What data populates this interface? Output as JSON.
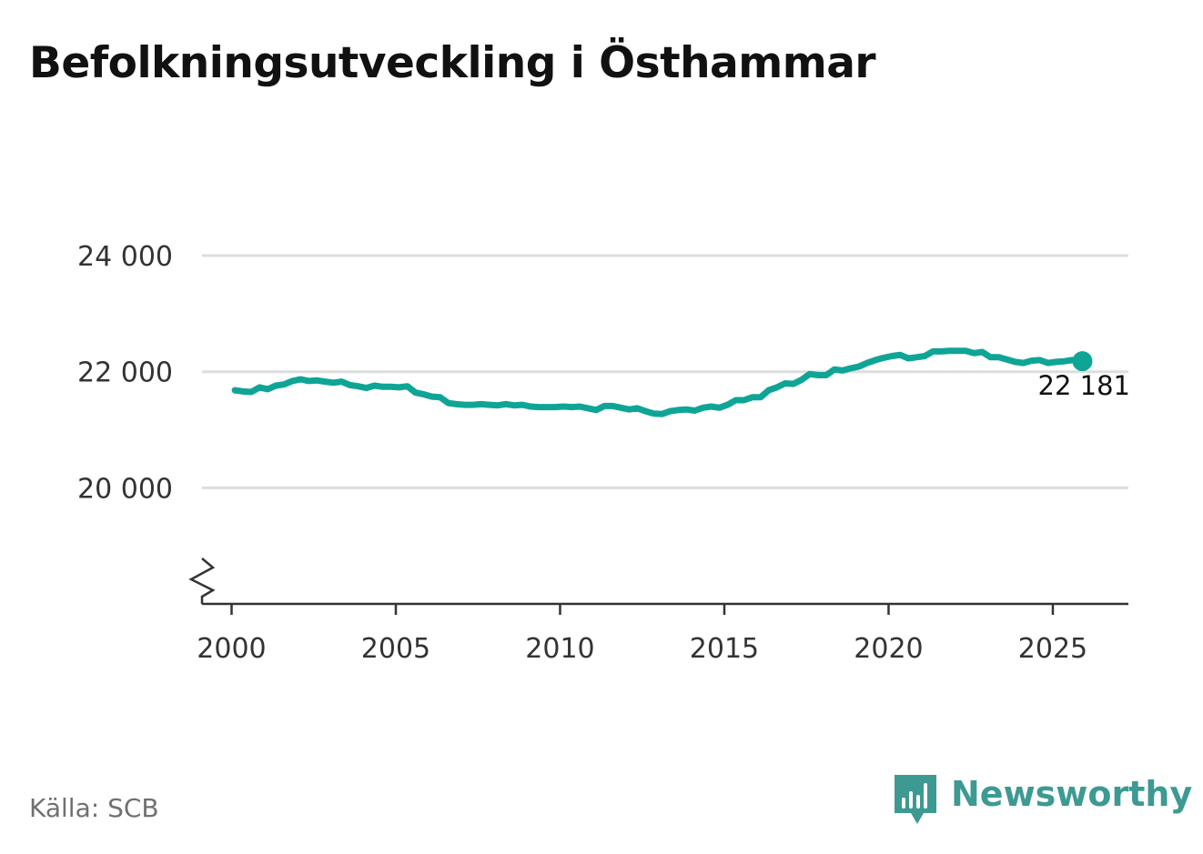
{
  "chart_data": {
    "type": "line",
    "title": "Befolkningsutveckling i Östhammar",
    "xlabel": "",
    "ylabel": "",
    "xlim": [
      1999.1,
      2027.3
    ],
    "ylim": [
      18000,
      24800
    ],
    "x_ticks": [
      2000,
      2005,
      2010,
      2015,
      2020,
      2025
    ],
    "x_tick_labels": [
      "2000",
      "2005",
      "2010",
      "2015",
      "2020",
      "2025"
    ],
    "y_ticks": [
      20000,
      22000,
      24000
    ],
    "y_tick_labels": [
      "20 000",
      "22 000",
      "24 000"
    ],
    "grid": true,
    "axis_break": true,
    "series": [
      {
        "name": "Befolkning",
        "color": "#0fa596",
        "x": [
          2000.1,
          2000.35,
          2000.6,
          2000.85,
          2001.1,
          2001.35,
          2001.6,
          2001.85,
          2002.1,
          2002.35,
          2002.6,
          2002.85,
          2003.1,
          2003.35,
          2003.6,
          2003.85,
          2004.1,
          2004.35,
          2004.6,
          2004.85,
          2005.1,
          2005.35,
          2005.6,
          2005.85,
          2006.1,
          2006.35,
          2006.6,
          2006.85,
          2007.1,
          2007.35,
          2007.6,
          2007.85,
          2008.1,
          2008.35,
          2008.6,
          2008.85,
          2009.1,
          2009.35,
          2009.6,
          2009.85,
          2010.1,
          2010.35,
          2010.6,
          2010.85,
          2011.1,
          2011.35,
          2011.6,
          2011.85,
          2012.1,
          2012.35,
          2012.6,
          2012.85,
          2013.1,
          2013.35,
          2013.6,
          2013.85,
          2014.1,
          2014.35,
          2014.6,
          2014.85,
          2015.1,
          2015.35,
          2015.6,
          2015.85,
          2016.1,
          2016.35,
          2016.6,
          2016.85,
          2017.1,
          2017.35,
          2017.6,
          2017.85,
          2018.1,
          2018.35,
          2018.6,
          2018.85,
          2019.1,
          2019.35,
          2019.6,
          2019.85,
          2020.1,
          2020.35,
          2020.6,
          2020.85,
          2021.1,
          2021.35,
          2021.6,
          2021.85,
          2022.1,
          2022.35,
          2022.6,
          2022.85,
          2023.1,
          2023.35,
          2023.6,
          2023.85,
          2024.1,
          2024.35,
          2024.6,
          2024.85,
          2025.1,
          2025.35,
          2025.6,
          2025.9
        ],
        "values": [
          21680,
          21660,
          21650,
          21730,
          21700,
          21760,
          21780,
          21840,
          21870,
          21840,
          21850,
          21830,
          21810,
          21830,
          21770,
          21750,
          21720,
          21760,
          21740,
          21740,
          21730,
          21750,
          21640,
          21610,
          21570,
          21560,
          21460,
          21440,
          21430,
          21430,
          21440,
          21430,
          21420,
          21440,
          21420,
          21430,
          21400,
          21390,
          21390,
          21390,
          21400,
          21390,
          21400,
          21370,
          21340,
          21410,
          21410,
          21380,
          21350,
          21370,
          21320,
          21280,
          21270,
          21320,
          21340,
          21350,
          21330,
          21380,
          21400,
          21380,
          21430,
          21510,
          21510,
          21560,
          21560,
          21680,
          21730,
          21800,
          21790,
          21860,
          21960,
          21940,
          21940,
          22040,
          22020,
          22060,
          22090,
          22150,
          22200,
          22240,
          22270,
          22290,
          22230,
          22250,
          22270,
          22350,
          22350,
          22360,
          22360,
          22360,
          22320,
          22340,
          22250,
          22250,
          22210,
          22170,
          22150,
          22190,
          22200,
          22150,
          22170,
          22180,
          22200,
          22181
        ]
      }
    ],
    "end_label": "22 181"
  },
  "source": "Källa: SCB",
  "brand": {
    "name": "Newsworthy",
    "color": "#3d9a92",
    "logo_icon": "newsworthy-bar-chart-icon"
  }
}
